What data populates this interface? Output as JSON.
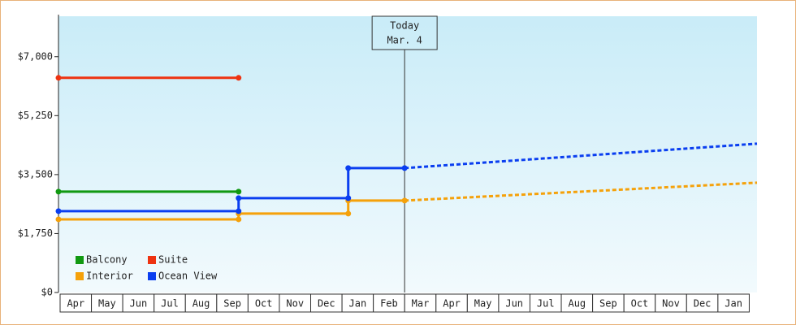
{
  "chart_data": {
    "type": "line",
    "categories": [
      "Apr",
      "May",
      "Jun",
      "Jul",
      "Aug",
      "Sep",
      "Oct",
      "Nov",
      "Dec",
      "Jan",
      "Feb",
      "Mar",
      "Apr",
      "May",
      "Jun",
      "Jul",
      "Aug",
      "Sep",
      "Oct",
      "Nov",
      "Dec",
      "Jan"
    ],
    "x": [
      0,
      5.75,
      5.75,
      9.25,
      9.25,
      11.05,
      22.3
    ],
    "xlim": [
      0,
      22.3
    ],
    "ylim": [
      0,
      8200
    ],
    "yticks": [
      {
        "value": 0,
        "label": "$0"
      },
      {
        "value": 1750,
        "label": "$1,750"
      },
      {
        "value": 3500,
        "label": "$3,500"
      },
      {
        "value": 5250,
        "label": "$5,250"
      },
      {
        "value": 7000,
        "label": "$7,000"
      }
    ],
    "annotation": {
      "x": 11.05,
      "lines": [
        "Today",
        "Mar. 4"
      ]
    },
    "series": [
      {
        "name": "Balcony",
        "color": "#119911",
        "values": [
          2993,
          2993,
          null,
          null,
          null,
          null,
          null
        ]
      },
      {
        "name": "Suite",
        "color": "#ee3311",
        "values": [
          6372,
          6372,
          null,
          null,
          null,
          null,
          null
        ]
      },
      {
        "name": "Interior",
        "color": "#f5a10a",
        "values": [
          2172,
          2172,
          2341,
          2341,
          2728,
          2728,
          3259
        ]
      },
      {
        "name": "Ocean View",
        "color": "#0a3ef0",
        "values": [
          2414,
          2414,
          2800,
          2800,
          3693,
          3693,
          4417
        ]
      }
    ]
  }
}
